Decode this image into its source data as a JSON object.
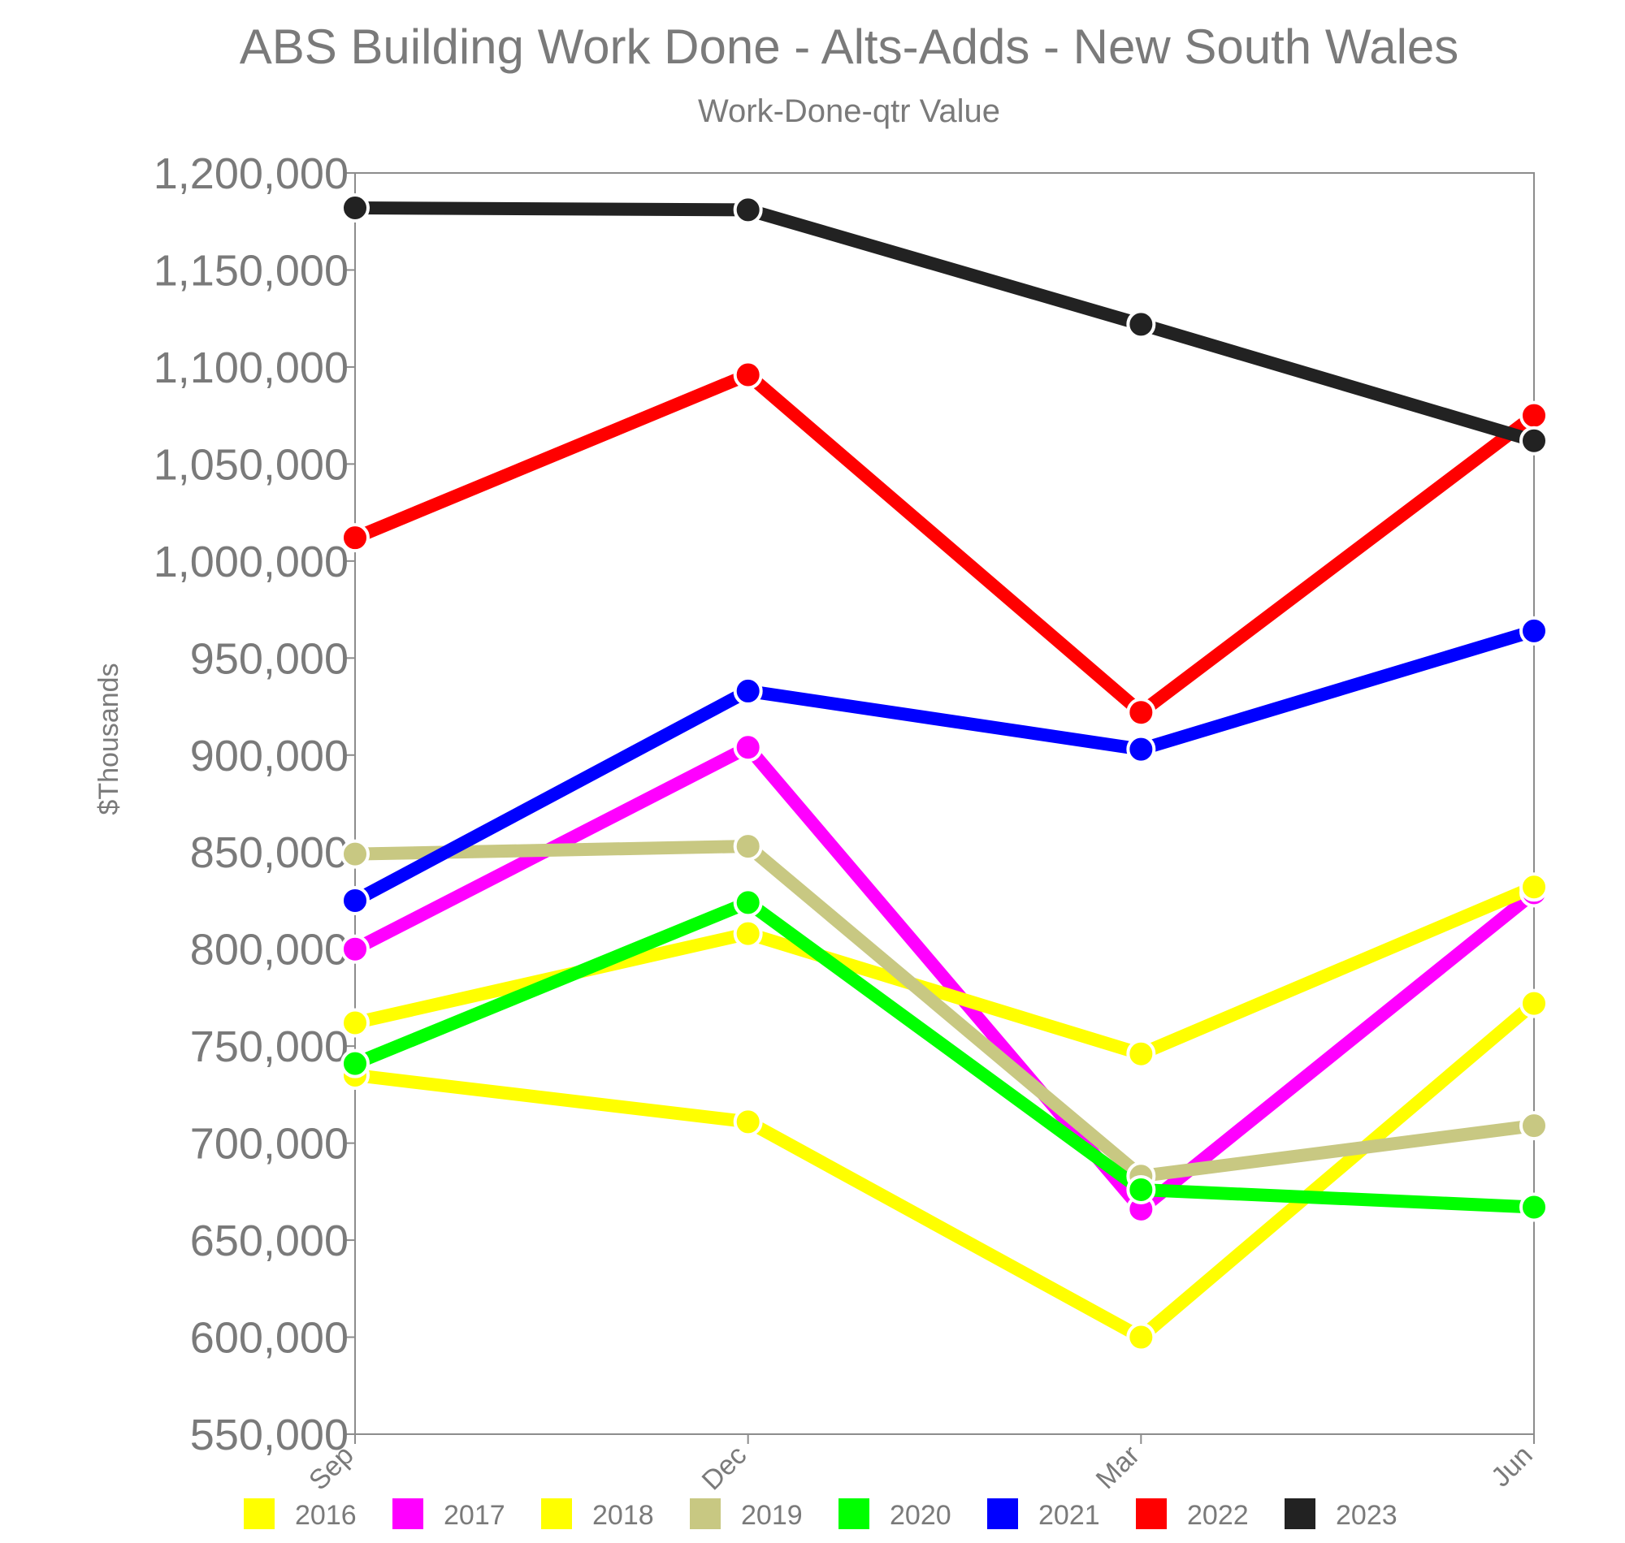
{
  "chart_data": {
    "type": "line",
    "title": "ABS Building Work Done - Alts-Adds - New South Wales",
    "subtitle": "Work-Done-qtr Value",
    "ylabel": "$Thousands",
    "xlabel": "",
    "categories": [
      "Sep",
      "Dec",
      "Mar",
      "Jun"
    ],
    "ylim": [
      550000,
      1200000
    ],
    "yticks": [
      "550,000",
      "600,000",
      "650,000",
      "700,000",
      "750,000",
      "800,000",
      "850,000",
      "900,000",
      "950,000",
      "1,000,000",
      "1,050,000",
      "1,100,000",
      "1,150,000",
      "1,200,000"
    ],
    "ytick_values": [
      550000,
      600000,
      650000,
      700000,
      750000,
      800000,
      850000,
      900000,
      950000,
      1000000,
      1050000,
      1100000,
      1150000,
      1200000
    ],
    "grid": false,
    "legend_position": "bottom",
    "series": [
      {
        "name": "2016",
        "color": "#ffff00",
        "values": [
          735000,
          711000,
          600000,
          772000
        ]
      },
      {
        "name": "2017",
        "color": "#ff00ff",
        "values": [
          800000,
          904000,
          666000,
          829000
        ]
      },
      {
        "name": "2018",
        "color": "#ffff00",
        "values": [
          762000,
          808000,
          746000,
          832000
        ]
      },
      {
        "name": "2019",
        "color": "#c8c882",
        "values": [
          849000,
          853000,
          683000,
          709000
        ]
      },
      {
        "name": "2020",
        "color": "#00ff00",
        "values": [
          741000,
          824000,
          676000,
          667000
        ]
      },
      {
        "name": "2021",
        "color": "#0000ff",
        "values": [
          825000,
          933000,
          903000,
          964000
        ]
      },
      {
        "name": "2022",
        "color": "#ff0000",
        "values": [
          1012000,
          1096000,
          922000,
          1075000
        ]
      },
      {
        "name": "2023",
        "color": "#222222",
        "values": [
          1182000,
          1181000,
          1122000,
          1062000
        ]
      }
    ]
  }
}
